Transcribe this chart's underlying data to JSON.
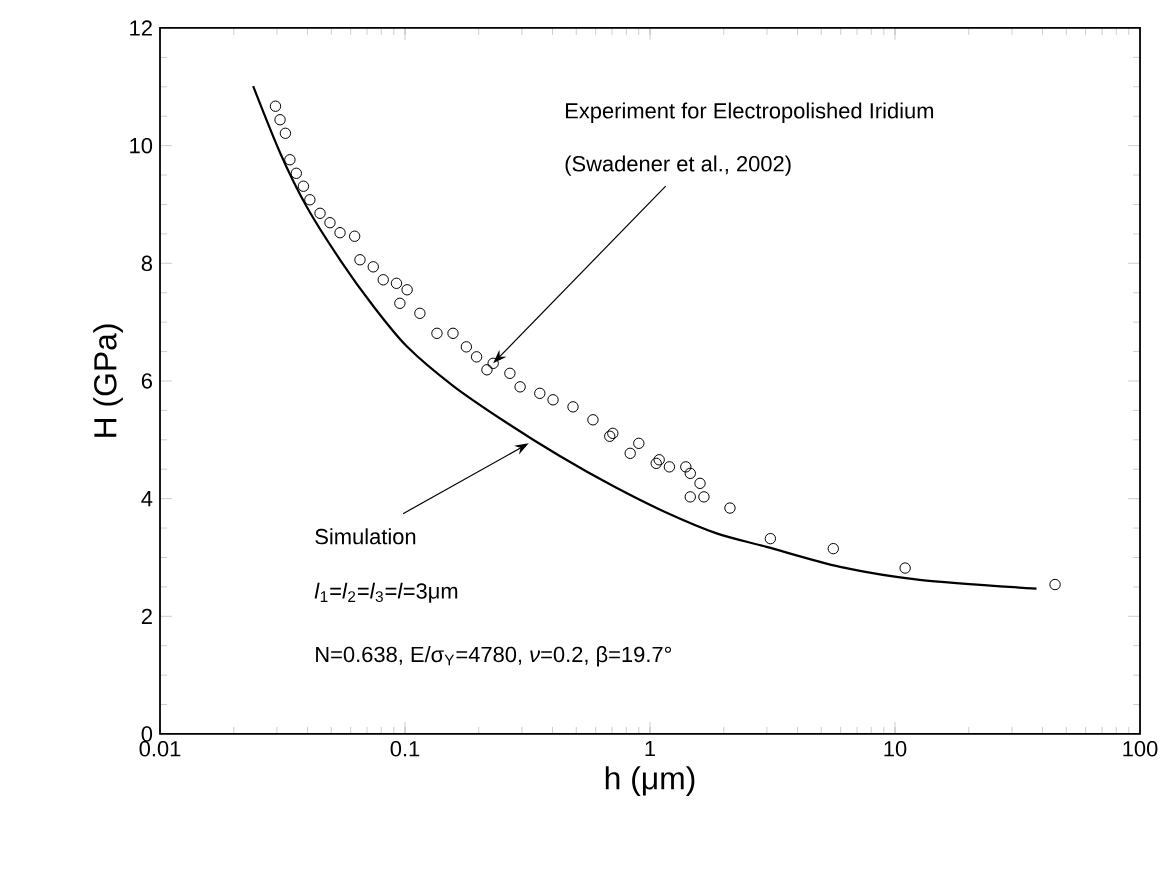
{
  "chart_data": {
    "type": "scatter",
    "xlabel": "h (μm)",
    "ylabel": "H (GPa)",
    "log": "x",
    "xlim": [
      0.01,
      100
    ],
    "ylim": [
      0,
      12
    ],
    "xticks": [
      0.01,
      0.1,
      1,
      10,
      100
    ],
    "yticks": [
      0,
      2,
      4,
      6,
      8,
      10,
      12
    ],
    "marker": "circle",
    "series": [
      {
        "color": "#000000",
        "x": [
          0.0296,
          0.0309,
          0.0325,
          0.0339,
          0.036,
          0.0385,
          0.0409,
          0.045,
          0.0494,
          0.0543,
          0.0623,
          0.0655,
          0.0742,
          0.0815,
          0.0923,
          0.102,
          0.0953,
          0.115,
          0.135,
          0.157,
          0.178,
          0.196,
          0.229,
          0.216,
          0.268,
          0.295,
          0.355,
          0.402,
          0.485,
          0.585,
          0.685,
          0.705,
          0.83,
          0.9,
          1.06,
          1.09,
          1.2,
          1.4,
          1.46,
          1.6,
          1.66,
          1.46,
          2.12,
          3.1,
          5.6,
          11.0,
          45
        ],
        "values": [
          10.67,
          10.44,
          10.21,
          9.76,
          9.53,
          9.31,
          9.08,
          8.85,
          8.69,
          8.52,
          8.46,
          8.06,
          7.94,
          7.72,
          7.66,
          7.55,
          7.32,
          7.15,
          6.81,
          6.81,
          6.58,
          6.41,
          6.3,
          6.19,
          6.13,
          5.9,
          5.79,
          5.68,
          5.56,
          5.34,
          5.06,
          5.11,
          4.77,
          4.94,
          4.6,
          4.66,
          4.54,
          4.54,
          4.43,
          4.26,
          4.03,
          4.03,
          3.84,
          3.32,
          3.15,
          2.82,
          2.54
        ]
      },
      {
        "type": "line",
        "color": "#000000",
        "marker": "none",
        "line_style": "solid",
        "x": [
          0.024,
          0.0309,
          0.0396,
          0.0543,
          0.0743,
          0.1016,
          0.158,
          0.26,
          0.43,
          0.71,
          1.17,
          1.87,
          2.99,
          5.97,
          12.6,
          37.8
        ],
        "values": [
          11.01,
          9.88,
          8.97,
          8.06,
          7.27,
          6.59,
          5.91,
          5.29,
          4.72,
          4.21,
          3.76,
          3.41,
          3.18,
          2.84,
          2.62,
          2.47
        ]
      }
    ],
    "annotations": [
      "Experiment for Electropolished Iridium",
      {
        "text": "(Swadener et al., 2002)",
        "x": 0.229,
        "y": 6.3
      },
      {
        "text": "Simulation",
        "x": 0.32,
        "y": 4.94
      },
      "*l*$_{1}$=*l*$_{2}$=*l*$_{3}$=*l*=3μm",
      "N=0.638, E/σ$_{Y}$=4780, *ν*=0.2, β=19.7°"
    ]
  }
}
